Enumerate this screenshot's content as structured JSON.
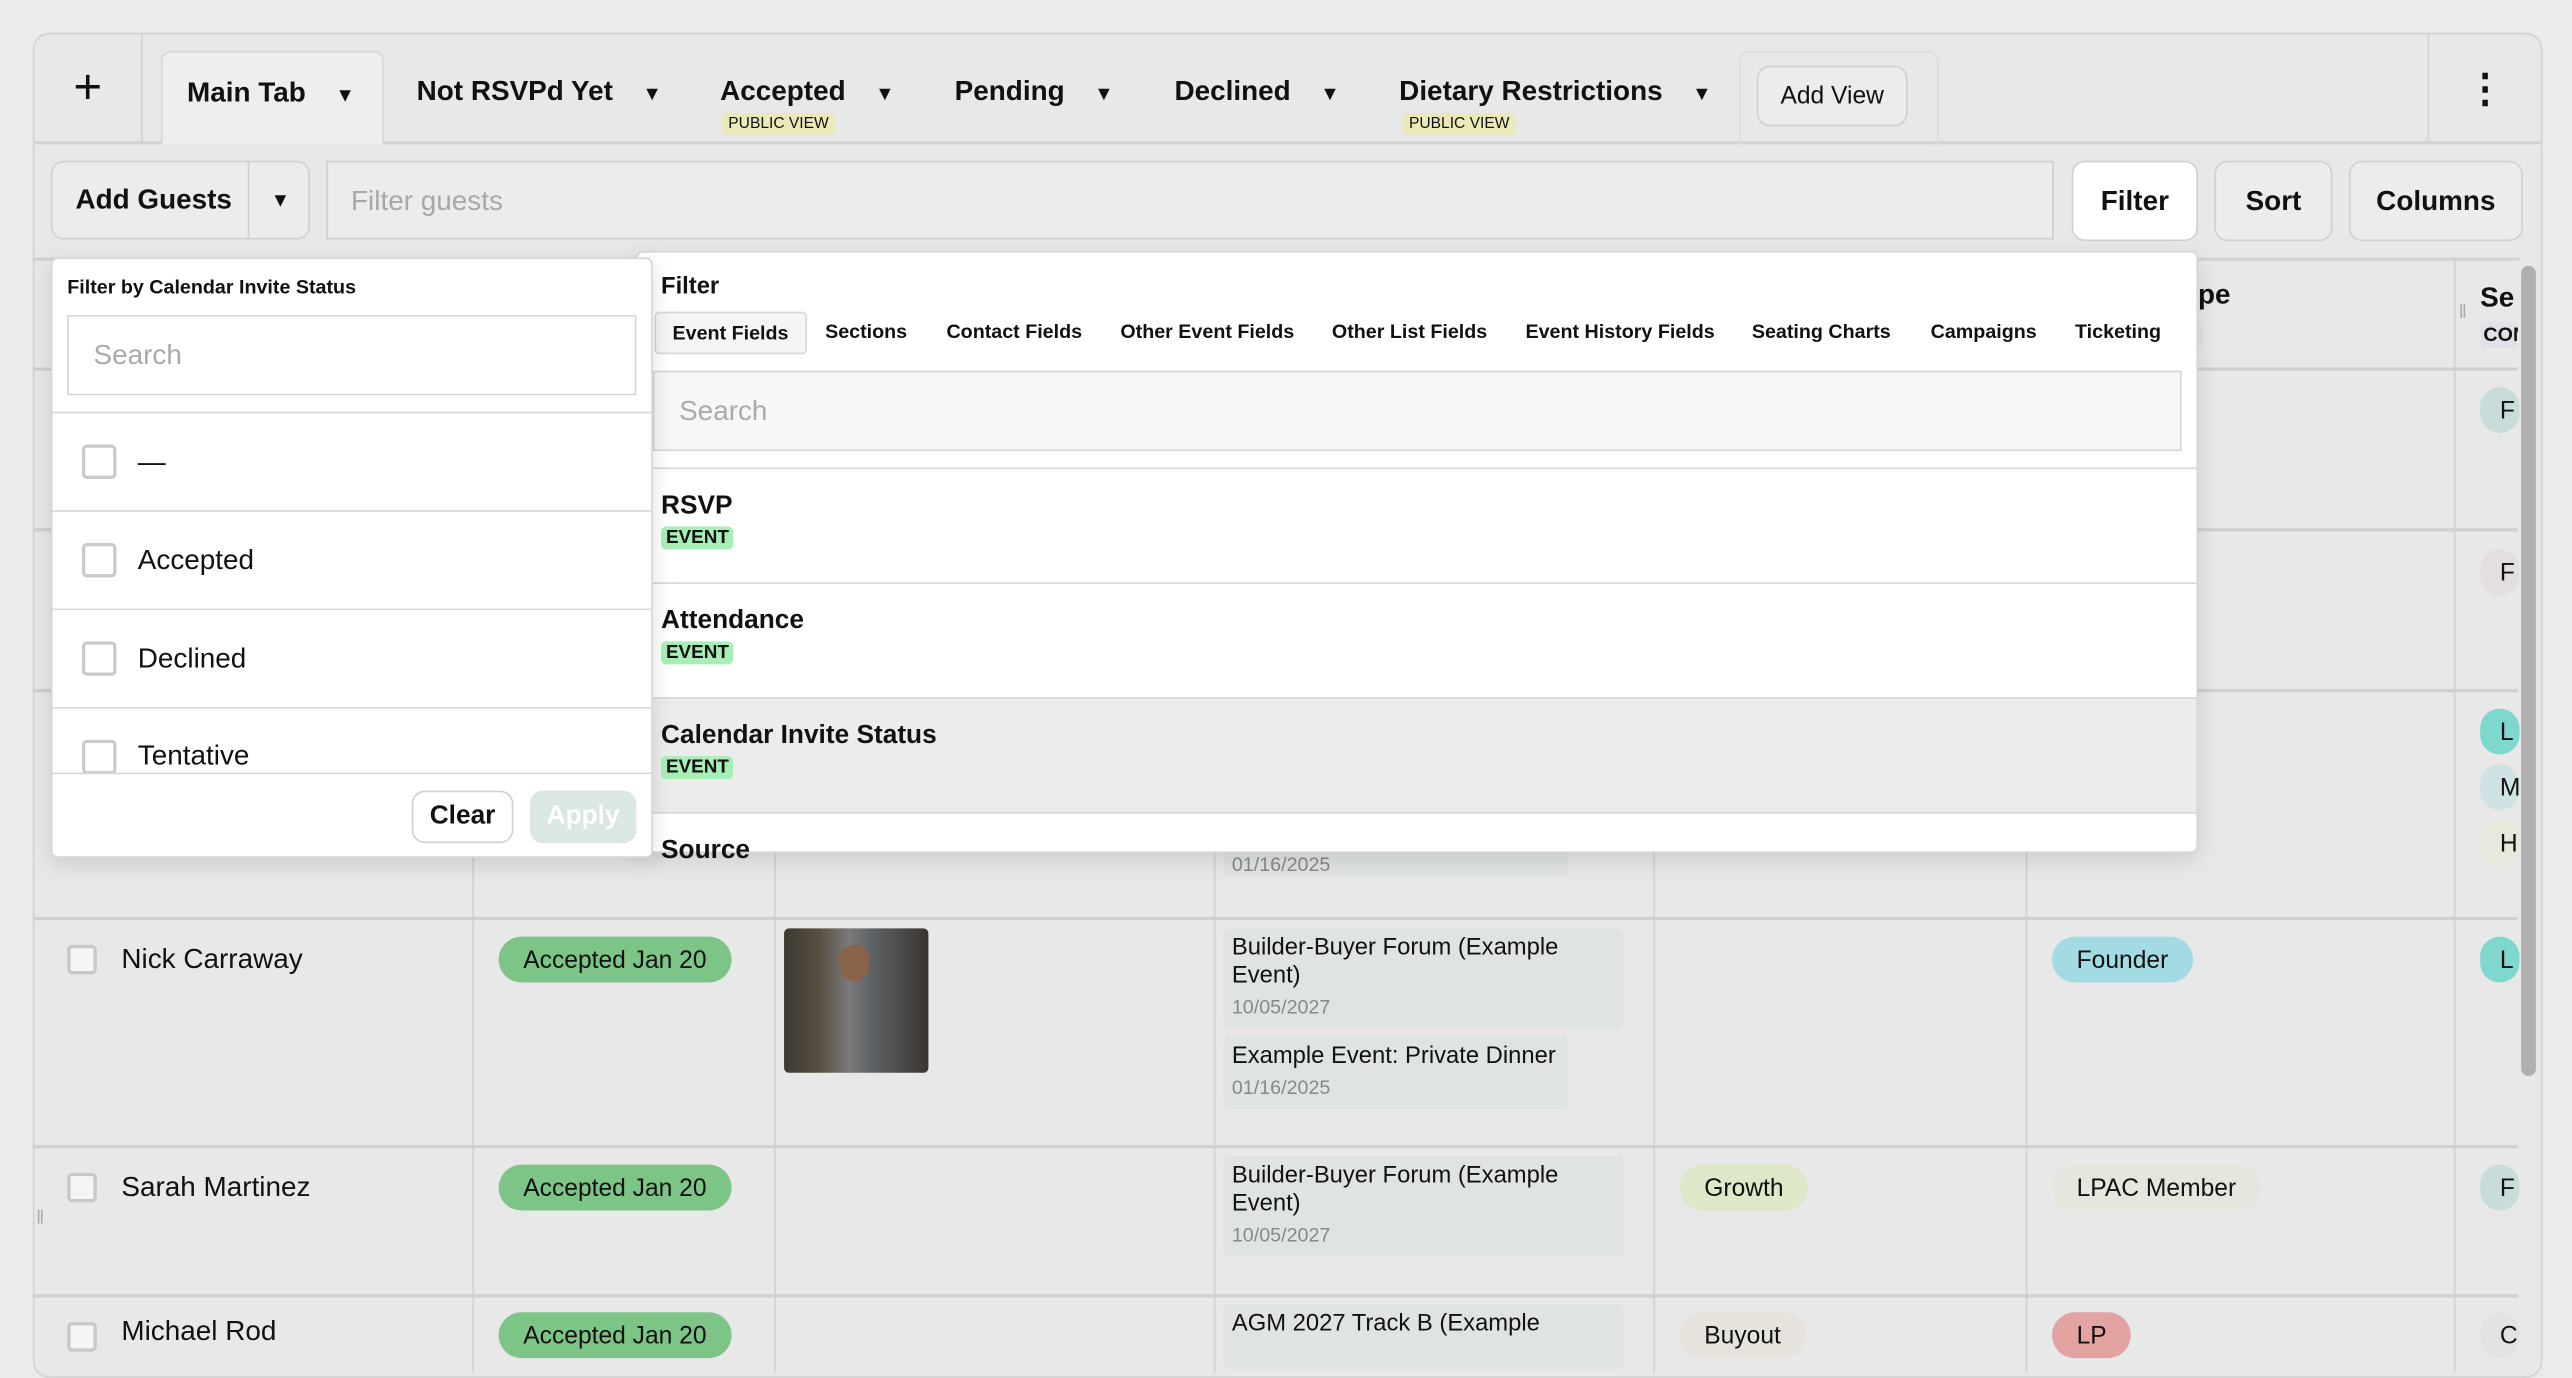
{
  "tabs": {
    "add_icon": "plus-icon",
    "items": [
      {
        "label": "Main Tab",
        "active": true
      },
      {
        "label": "Not RSVPd Yet"
      },
      {
        "label": "Accepted",
        "badge": "PUBLIC VIEW"
      },
      {
        "label": "Pending"
      },
      {
        "label": "Declined"
      },
      {
        "label": "Dietary Restrictions",
        "badge": "PUBLIC VIEW"
      }
    ],
    "add_view": "Add View",
    "more_icon": "kebab-icon"
  },
  "toolbar": {
    "add_guests": "Add Guests",
    "filter_placeholder": "Filter guests",
    "filter": "Filter",
    "sort": "Sort",
    "columns": "Columns"
  },
  "table": {
    "headers": {
      "type_fragment": "pe",
      "type_tag_fragment": "o",
      "last_fragment": "Se",
      "last_tag_fragment": "CON"
    },
    "hidden_row_date": "01/16/2025",
    "right_col_tags": [
      "F",
      "F",
      "L",
      "M",
      "H"
    ],
    "rows": [
      {
        "name": "Nick Carraway",
        "rsvp": "Accepted Jan 20",
        "events": [
          {
            "name": "Builder-Buyer Forum (Example Event)",
            "date": "10/05/2027"
          },
          {
            "name": "Example Event: Private Dinner",
            "date": "01/16/2025"
          }
        ],
        "tag": "",
        "type": "Founder",
        "last": "L"
      },
      {
        "name": "Sarah Martinez",
        "rsvp": "Accepted Jan 20",
        "events": [
          {
            "name": "Builder-Buyer Forum (Example Event)",
            "date": "10/05/2027"
          }
        ],
        "tag": "Growth",
        "type": "LPAC Member",
        "last": "F"
      },
      {
        "name": "Michael Rod",
        "rsvp": "Accepted Jan 20",
        "events": [
          {
            "name": "AGM 2027 Track B (Example",
            "date": ""
          }
        ],
        "tag": "Buyout",
        "type": "LP",
        "last": "C"
      }
    ]
  },
  "calendar_filter": {
    "title": "Filter by Calendar Invite Status",
    "search_placeholder": "Search",
    "options": [
      "—",
      "Accepted",
      "Declined",
      "Tentative"
    ],
    "clear": "Clear",
    "apply": "Apply"
  },
  "field_filter": {
    "title": "Filter",
    "tabs": [
      "Event Fields",
      "Sections",
      "Contact Fields",
      "Other Event Fields",
      "Other List Fields",
      "Event History Fields",
      "Seating Charts",
      "Campaigns",
      "Ticketing"
    ],
    "active_tab": "Event Fields",
    "search_placeholder": "Search",
    "fields": [
      {
        "name": "RSVP",
        "type": "EVENT"
      },
      {
        "name": "Attendance",
        "type": "EVENT"
      },
      {
        "name": "Calendar Invite Status",
        "type": "EVENT",
        "highlighted": true
      },
      {
        "name": "Source",
        "type": ""
      }
    ]
  },
  "colors": {
    "accepted": "#7dc587",
    "event_tag": "#a7efb7",
    "public_view": "#ece9b8",
    "founder": "#a3dbe2",
    "lp": "#e3a3a3"
  }
}
